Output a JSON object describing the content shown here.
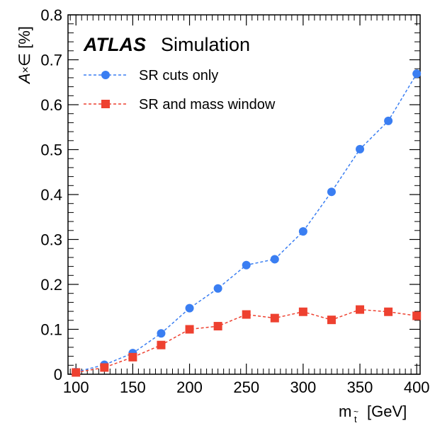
{
  "chart_data": {
    "type": "line",
    "experiment_label": "ATLAS",
    "experiment_sublabel": "Simulation",
    "ylabel": {
      "symbol": "A",
      "times": "×",
      "epsilon": "∈",
      "unit": "[%]"
    },
    "xlabel": {
      "symbol": "m",
      "subscript": "t",
      "subscript_accent": "~",
      "unit": "[GeV]"
    },
    "xlim": [
      93,
      403
    ],
    "ylim": [
      0,
      0.8
    ],
    "x_ticks": [
      100,
      150,
      200,
      250,
      300,
      350,
      400
    ],
    "x_tick_labels": [
      "100",
      "150",
      "200",
      "250",
      "300",
      "350",
      "400"
    ],
    "y_ticks": [
      0,
      0.1,
      0.2,
      0.3,
      0.4,
      0.5,
      0.6,
      0.7,
      0.8
    ],
    "y_tick_labels": [
      "0",
      "0.1",
      "0.2",
      "0.3",
      "0.4",
      "0.5",
      "0.6",
      "0.7",
      "0.8"
    ],
    "grid": false,
    "legend_position": "top-left",
    "x": [
      100,
      125,
      150,
      175,
      200,
      225,
      250,
      275,
      300,
      325,
      350,
      375,
      400
    ],
    "series": [
      {
        "name": "SR cuts only",
        "marker": "circle",
        "color": "#3a7ef2",
        "line_style": "dashed",
        "values": [
          0.005,
          0.021,
          0.047,
          0.091,
          0.147,
          0.191,
          0.243,
          0.256,
          0.318,
          0.406,
          0.501,
          0.564,
          0.669
        ]
      },
      {
        "name": "SR and mass window",
        "marker": "square",
        "color": "#ee4130",
        "line_style": "dashed",
        "values": [
          0.004,
          0.015,
          0.038,
          0.065,
          0.1,
          0.107,
          0.133,
          0.125,
          0.139,
          0.121,
          0.144,
          0.139,
          0.13
        ]
      }
    ]
  }
}
